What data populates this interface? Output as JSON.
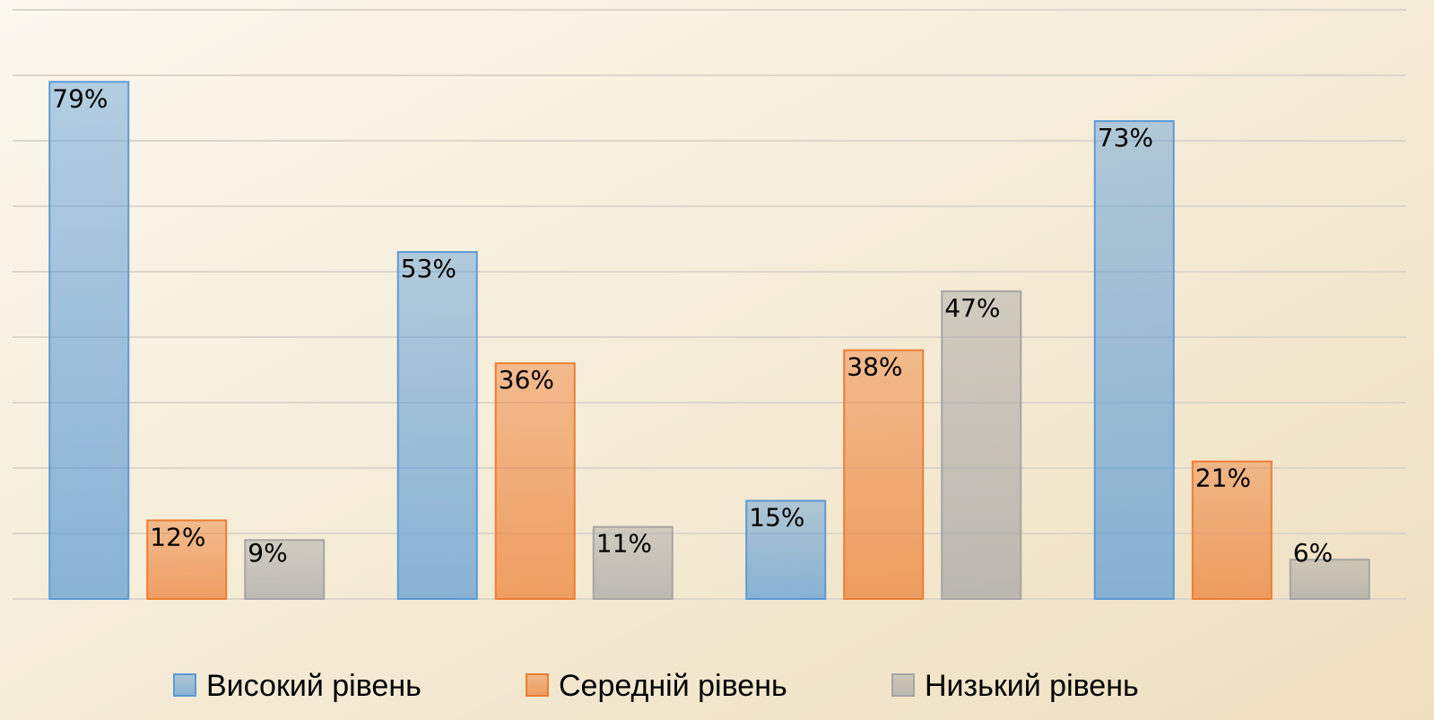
{
  "chart_data": {
    "type": "bar",
    "categories": [
      null,
      null,
      null,
      null
    ],
    "series": [
      {
        "name": "Високий рівень",
        "color": "#5b9bd5",
        "values": [
          79,
          53,
          15,
          73
        ],
        "value_labels": [
          "79%",
          "53%",
          "15%",
          "73%"
        ]
      },
      {
        "name": "Середній рівень",
        "color": "#ed7d31",
        "values": [
          12,
          36,
          38,
          21
        ],
        "value_labels": [
          "12%",
          "36%",
          "38%",
          "21%"
        ]
      },
      {
        "name": "Низький рівень",
        "color": "#a5a5a5",
        "values": [
          9,
          11,
          47,
          6
        ],
        "value_labels": [
          "9%",
          "11%",
          "47%",
          "6%"
        ]
      }
    ],
    "ylim": [
      0,
      91.5
    ],
    "yticks": [
      0,
      10,
      20,
      30,
      40,
      50,
      60,
      70,
      80,
      90
    ],
    "grid": true,
    "legend": "bottom"
  }
}
